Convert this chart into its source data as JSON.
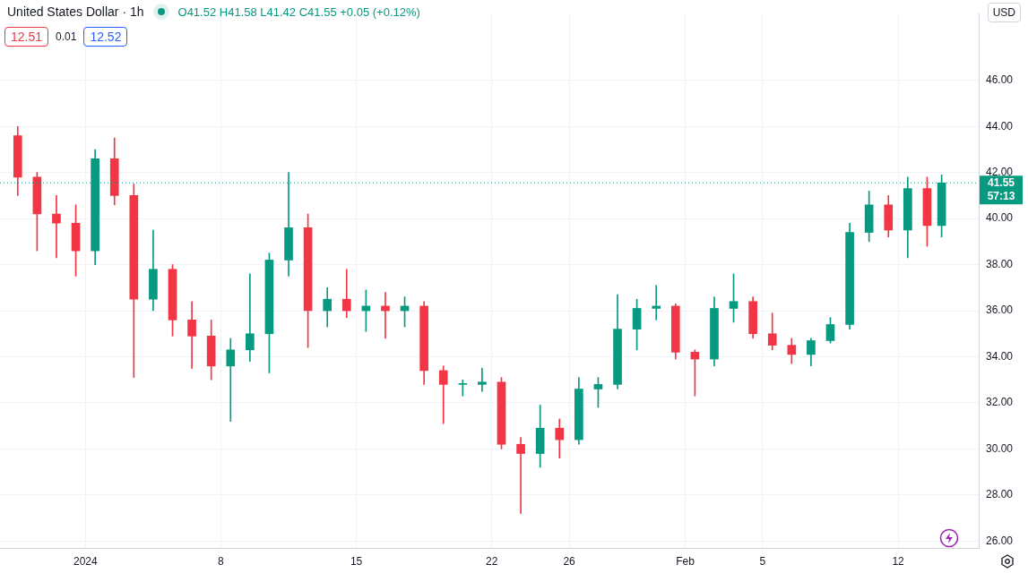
{
  "chart_data": {
    "type": "candlestick",
    "title": "United States Dollar · 1h",
    "subtitle": "O41.52 H41.58 L41.42 C41.55 +0.05 (+0.12%)",
    "annotations": [
      "12.51",
      "0.01",
      "12.52",
      "USD",
      "57:13"
    ],
    "x": [
      "2023-12-28T12:00",
      "2023-12-29T12:00",
      "2023-12-30T12:00",
      "2023-12-31T12:00",
      "2024-01-01T12:00",
      "2024-01-02T12:00",
      "2024-01-03T12:00",
      "2024-01-04T12:00",
      "2024-01-05T12:00",
      "2024-01-06T12:00",
      "2024-01-07T12:00",
      "2024-01-08T12:00",
      "2024-01-09T12:00",
      "2024-01-10T12:00",
      "2024-01-11T12:00",
      "2024-01-12T12:00",
      "2024-01-13T12:00",
      "2024-01-14T12:00",
      "2024-01-15T12:00",
      "2024-01-16T12:00",
      "2024-01-17T12:00",
      "2024-01-18T12:00",
      "2024-01-19T12:00",
      "2024-01-20T12:00",
      "2024-01-21T12:00",
      "2024-01-22T12:00",
      "2024-01-23T12:00",
      "2024-01-24T12:00",
      "2024-01-25T12:00",
      "2024-01-26T12:00",
      "2024-01-27T12:00",
      "2024-01-28T12:00",
      "2024-01-29T12:00",
      "2024-01-30T12:00",
      "2024-01-31T12:00",
      "2024-02-01T12:00",
      "2024-02-02T12:00",
      "2024-02-03T12:00",
      "2024-02-04T12:00",
      "2024-02-05T12:00",
      "2024-02-06T12:00",
      "2024-02-07T12:00",
      "2024-02-08T12:00",
      "2024-02-09T12:00",
      "2024-02-10T12:00",
      "2024-02-11T12:00",
      "2024-02-12T12:00",
      "2024-02-13T12:00",
      "2024-02-14T06:00"
    ],
    "ohlc": [
      [
        43.6,
        44.0,
        41.0,
        41.8
      ],
      [
        41.8,
        42.0,
        38.6,
        40.2
      ],
      [
        40.2,
        41.0,
        38.3,
        39.8
      ],
      [
        39.8,
        40.6,
        37.5,
        38.6
      ],
      [
        38.6,
        43.0,
        38.0,
        42.6
      ],
      [
        42.6,
        43.5,
        40.6,
        41.0
      ],
      [
        41.0,
        41.5,
        33.1,
        36.5
      ],
      [
        36.5,
        39.5,
        36.0,
        37.8
      ],
      [
        37.8,
        38.0,
        34.9,
        35.6
      ],
      [
        35.6,
        36.4,
        33.5,
        34.9
      ],
      [
        34.9,
        35.6,
        33.0,
        33.6
      ],
      [
        33.6,
        34.8,
        31.2,
        34.3
      ],
      [
        34.3,
        37.6,
        33.8,
        35.0
      ],
      [
        35.0,
        38.5,
        33.3,
        38.2
      ],
      [
        38.2,
        42.0,
        37.5,
        39.6
      ],
      [
        39.6,
        40.2,
        34.4,
        36.0
      ],
      [
        36.0,
        37.0,
        35.3,
        36.5
      ],
      [
        36.5,
        37.8,
        35.7,
        36.0
      ],
      [
        36.0,
        36.9,
        35.1,
        36.2
      ],
      [
        36.2,
        36.8,
        34.8,
        36.0
      ],
      [
        36.0,
        36.6,
        35.3,
        36.2
      ],
      [
        36.2,
        36.4,
        32.8,
        33.4
      ],
      [
        33.4,
        33.6,
        31.1,
        32.8
      ],
      [
        32.8,
        33.0,
        32.3,
        32.8
      ],
      [
        32.8,
        33.5,
        32.5,
        32.9
      ],
      [
        32.9,
        33.1,
        30.0,
        30.2
      ],
      [
        30.2,
        30.5,
        27.2,
        29.8
      ],
      [
        29.8,
        31.9,
        29.2,
        30.9
      ],
      [
        30.9,
        31.3,
        29.6,
        30.4
      ],
      [
        30.4,
        33.1,
        30.2,
        32.6
      ],
      [
        32.6,
        33.1,
        31.8,
        32.8
      ],
      [
        32.8,
        36.7,
        32.6,
        35.2
      ],
      [
        35.2,
        36.5,
        34.3,
        36.1
      ],
      [
        36.1,
        37.1,
        35.6,
        36.2
      ],
      [
        36.2,
        36.3,
        33.9,
        34.2
      ],
      [
        34.2,
        34.3,
        32.3,
        33.9
      ],
      [
        33.9,
        36.6,
        33.6,
        36.1
      ],
      [
        36.1,
        37.6,
        35.5,
        36.4
      ],
      [
        36.4,
        36.6,
        34.8,
        35.0
      ],
      [
        35.0,
        35.9,
        34.3,
        34.5
      ],
      [
        34.5,
        34.8,
        33.7,
        34.1
      ],
      [
        34.1,
        34.8,
        33.6,
        34.7
      ],
      [
        34.7,
        35.7,
        34.6,
        35.4
      ],
      [
        35.4,
        39.8,
        35.2,
        39.4
      ],
      [
        39.4,
        41.2,
        39.0,
        40.6
      ],
      [
        40.6,
        41.0,
        39.2,
        39.5
      ],
      [
        39.5,
        41.8,
        38.3,
        41.3
      ],
      [
        41.3,
        41.8,
        38.8,
        39.7
      ],
      [
        39.7,
        41.9,
        39.2,
        41.55
      ]
    ],
    "colors": [
      "#f23645",
      "#f23645",
      "#f23645",
      "#f23645",
      "#089981",
      "#f23645",
      "#f23645",
      "#089981",
      "#f23645",
      "#f23645",
      "#f23645",
      "#089981",
      "#089981",
      "#089981",
      "#089981",
      "#f23645",
      "#089981",
      "#f23645",
      "#089981",
      "#f23645",
      "#089981",
      "#f23645",
      "#f23645",
      "#089981",
      "#089981",
      "#f23645",
      "#f23645",
      "#089981",
      "#f23645",
      "#089981",
      "#089981",
      "#089981",
      "#089981",
      "#089981",
      "#f23645",
      "#f23645",
      "#089981",
      "#089981",
      "#f23645",
      "#f23645",
      "#f23645",
      "#089981",
      "#089981",
      "#089981",
      "#089981",
      "#f23645",
      "#089981",
      "#f23645",
      "#089981"
    ],
    "xlim": [
      "2023-12-27T14:00",
      "2024-02-16T04:00"
    ],
    "xticks": [
      {
        "value": "2024-01-01",
        "label": "2024"
      },
      {
        "value": "2024-01-08",
        "label": "8"
      },
      {
        "value": "2024-01-15",
        "label": "15"
      },
      {
        "value": "2024-01-22",
        "label": "22"
      },
      {
        "value": "2024-01-26",
        "label": "26"
      },
      {
        "value": "2024-02-01",
        "label": "Feb"
      },
      {
        "value": "2024-02-05",
        "label": "5"
      },
      {
        "value": "2024-02-12",
        "label": "12"
      }
    ],
    "ylim": [
      25.7,
      48.9
    ],
    "yticks": [
      {
        "value": 26,
        "label": "26.00"
      },
      {
        "value": 28,
        "label": "28.00"
      },
      {
        "value": 30,
        "label": "30.00"
      },
      {
        "value": 32,
        "label": "32.00"
      },
      {
        "value": 34,
        "label": "34.00"
      },
      {
        "value": 36,
        "label": "36.00"
      },
      {
        "value": 38,
        "label": "38.00"
      },
      {
        "value": 40,
        "label": "40.00"
      },
      {
        "value": 42,
        "label": "42.00"
      },
      {
        "value": 44,
        "label": "44.00"
      },
      {
        "value": 46,
        "label": "46.00"
      }
    ],
    "ref_lines": [
      {
        "axis": "y",
        "value": 41.55,
        "label": "41.55",
        "color": "#089981",
        "line_style": "dotted"
      }
    ],
    "grid": true,
    "legend": false
  }
}
